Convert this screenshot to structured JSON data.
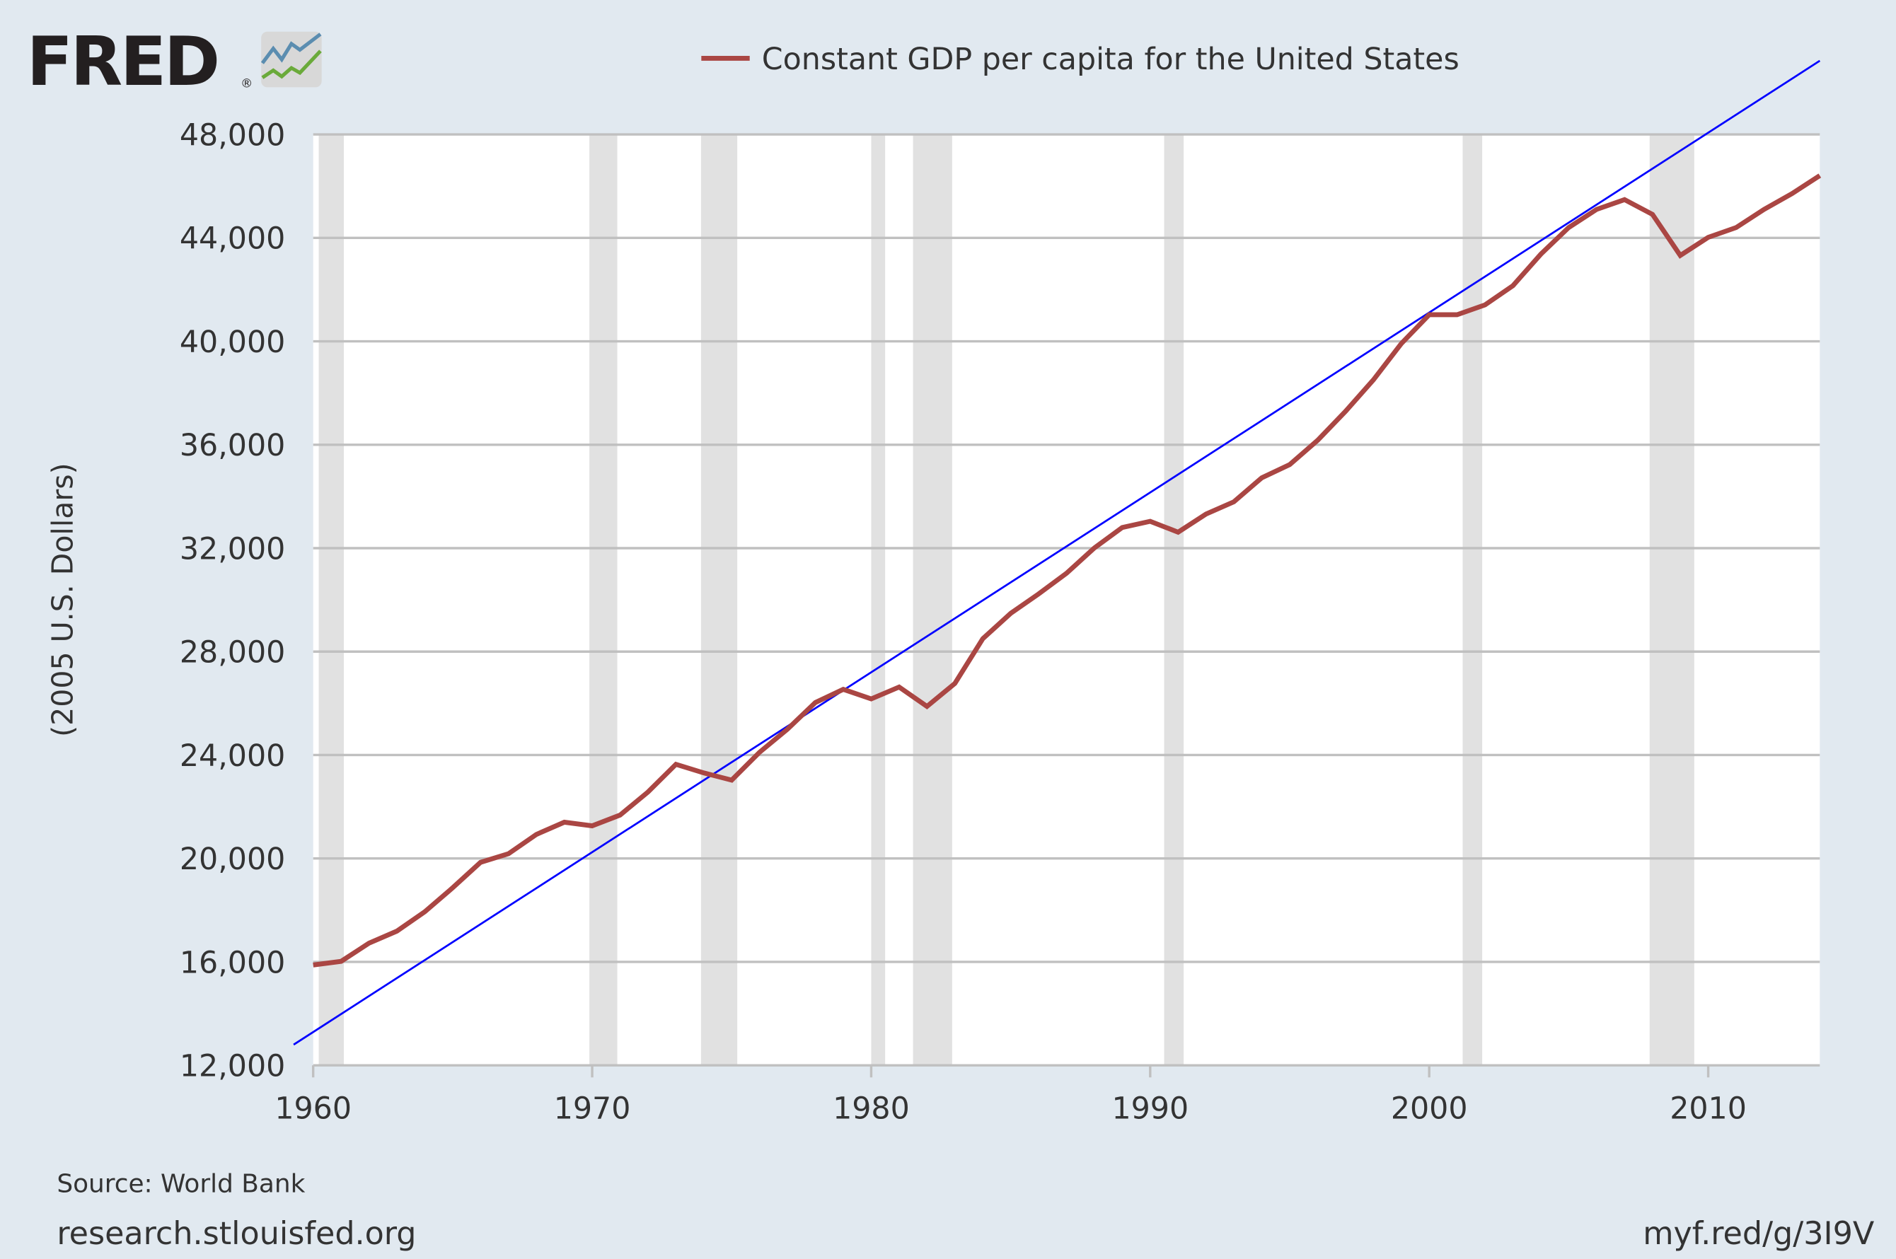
{
  "logo": {
    "text": "FRED",
    "registered": "®"
  },
  "colors": {
    "background": "#e1e9f0",
    "plot_background": "#ffffff",
    "series": "#aa4643",
    "trend": "#0000ff",
    "recession": "#e1e1e1",
    "grid": "#c0c0c0",
    "text": "#333333"
  },
  "footer": {
    "source": "Source: World Bank",
    "site": "research.stlouisfed.org",
    "short_url": "myf.red/g/3I9V"
  },
  "chart_data": {
    "type": "line",
    "title": "",
    "xlabel": "",
    "ylabel": "(2005 U.S. Dollars)",
    "legend_position": "top-center",
    "grid": true,
    "xlim": [
      1960,
      2014
    ],
    "ylim": [
      12000,
      48000
    ],
    "x_ticks": [
      "1960",
      "1970",
      "1980",
      "1990",
      "2000",
      "2010"
    ],
    "y_ticks": [
      "12,000",
      "16,000",
      "20,000",
      "24,000",
      "28,000",
      "32,000",
      "36,000",
      "40,000",
      "44,000",
      "48,000"
    ],
    "x": [
      1960,
      1961,
      1962,
      1963,
      1964,
      1965,
      1966,
      1967,
      1968,
      1969,
      1970,
      1971,
      1972,
      1973,
      1974,
      1975,
      1976,
      1977,
      1978,
      1979,
      1980,
      1981,
      1982,
      1983,
      1984,
      1985,
      1986,
      1987,
      1988,
      1989,
      1990,
      1991,
      1992,
      1993,
      1994,
      1995,
      1996,
      1997,
      1998,
      1999,
      2000,
      2001,
      2002,
      2003,
      2004,
      2005,
      2006,
      2007,
      2008,
      2009,
      2010,
      2011,
      2012,
      2013,
      2014
    ],
    "series": [
      {
        "name": "Constant GDP per capita for the United States",
        "values": [
          15880,
          16020,
          16720,
          17190,
          17940,
          18870,
          19850,
          20180,
          20930,
          21400,
          21260,
          21680,
          22570,
          23640,
          23310,
          23030,
          24110,
          25000,
          26030,
          26540,
          26170,
          26630,
          25880,
          26770,
          28500,
          29480,
          30230,
          31030,
          32010,
          32800,
          33040,
          32620,
          33320,
          33790,
          34720,
          35230,
          36170,
          37290,
          38510,
          39910,
          41030,
          41030,
          41410,
          42150,
          43370,
          44400,
          45100,
          45480,
          44910,
          43320,
          44020,
          44400,
          45100,
          45710,
          46410
        ]
      }
    ],
    "trend_line": {
      "start": [
        1959.3,
        12800
      ],
      "end": [
        2014,
        50850
      ]
    },
    "recessions": [
      [
        1960.2,
        1961.1
      ],
      [
        1969.9,
        1970.9
      ],
      [
        1973.9,
        1975.2
      ],
      [
        1980.0,
        1980.5
      ],
      [
        1981.5,
        1982.9
      ],
      [
        1990.5,
        1991.2
      ],
      [
        2001.2,
        2001.9
      ],
      [
        2007.9,
        2009.5
      ]
    ]
  }
}
